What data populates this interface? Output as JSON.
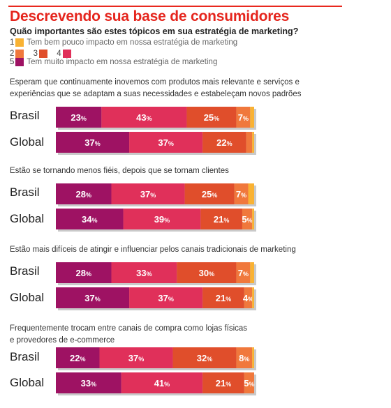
{
  "title": "Descrevendo sua base de consumidores",
  "subtitle": "Quão importantes são estes tópicos em sua estratégia de marketing?",
  "legend": {
    "low_label": "Tem bem pouco impacto em nossa estratégia de marketing",
    "high_label": "Tem muito impacto em nossa estratégia de marketing",
    "levels": [
      {
        "num": "1",
        "color": "#f9b233"
      },
      {
        "num": "2",
        "color": "#f0783c"
      },
      {
        "num": "3",
        "color": "#e04e2b"
      },
      {
        "num": "4",
        "color": "#e0305a"
      },
      {
        "num": "5",
        "color": "#9e1263"
      }
    ]
  },
  "chart_data": {
    "type": "bar",
    "orientation": "horizontal-stacked",
    "percent_sign": "%",
    "series_order": [
      "5",
      "4",
      "3",
      "2",
      "1"
    ],
    "colors": {
      "5": "#9e1263",
      "4": "#e0305a",
      "3": "#e04e2b",
      "2": "#f0783c",
      "1": "#f9b233"
    },
    "groups": [
      {
        "question": [
          "Esperam que continuamente inovemos com produtos mais relevante e serviços e",
          "experiências que se adaptam a suas necessidades e estabeleçam novos padrões"
        ],
        "rows": [
          {
            "label": "Brasil",
            "values": [
              23,
              43,
              25,
              7,
              2
            ],
            "labels": [
              "23",
              "43",
              "25",
              "7",
              ""
            ]
          },
          {
            "label": "Global",
            "values": [
              37,
              37,
              22,
              3,
              1
            ],
            "labels": [
              "37",
              "37",
              "22",
              "",
              ""
            ]
          }
        ]
      },
      {
        "question": [
          "Estão se tornando menos fiéis, depois que se tornam clientes"
        ],
        "rows": [
          {
            "label": "Brasil",
            "values": [
              28,
              37,
              25,
              7,
              3
            ],
            "labels": [
              "28",
              "37",
              "25",
              "7",
              ""
            ]
          },
          {
            "label": "Global",
            "values": [
              34,
              39,
              21,
              5,
              1
            ],
            "labels": [
              "34",
              "39",
              "21",
              "5",
              ""
            ]
          }
        ]
      },
      {
        "question": [
          "Estão mais difíceis de atingir e influenciar pelos canais tradicionais de marketing"
        ],
        "rows": [
          {
            "label": "Brasil",
            "values": [
              28,
              33,
              30,
              7,
              2
            ],
            "labels": [
              "28",
              "33",
              "30",
              "7",
              ""
            ]
          },
          {
            "label": "Global",
            "values": [
              37,
              37,
              21,
              4,
              1
            ],
            "labels": [
              "37",
              "37",
              "21",
              "4",
              ""
            ]
          }
        ]
      },
      {
        "question": [
          "Frequentemente trocam entre canais de compra como lojas físicas",
          "e provedores de e-commerce"
        ],
        "rows": [
          {
            "label": "Brasil",
            "values": [
              22,
              37,
              32,
              8,
              1
            ],
            "labels": [
              "22",
              "37",
              "32",
              "8",
              ""
            ]
          },
          {
            "label": "Global",
            "values": [
              33,
              41,
              21,
              5,
              0
            ],
            "labels": [
              "33",
              "41",
              "21",
              "5",
              ""
            ]
          }
        ]
      }
    ]
  }
}
